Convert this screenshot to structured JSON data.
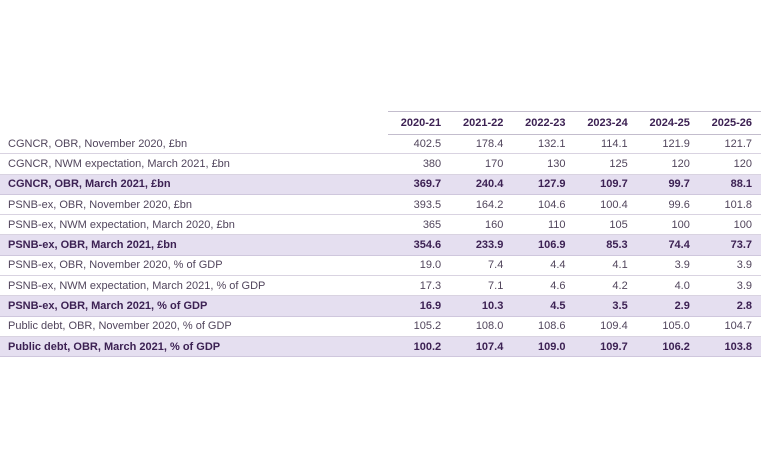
{
  "colors": {
    "background": "#ffffff",
    "highlight_row_bg": "#e5dff0",
    "bold_text": "#3c2153",
    "regular_text": "#51455c",
    "row_border": "#d9d3e1",
    "header_border": "#c3bdcd"
  },
  "chart_data": {
    "type": "table",
    "title": "",
    "columns": [
      "2020-21",
      "2021-22",
      "2022-23",
      "2023-24",
      "2024-25",
      "2025-26"
    ],
    "rows": [
      {
        "label": "CGNCR, OBR, November 2020, £bn",
        "values": [
          "402.5",
          "178.4",
          "132.1",
          "114.1",
          "121.9",
          "121.7"
        ],
        "highlight": false
      },
      {
        "label": "CGNCR, NWM expectation, March 2021, £bn",
        "values": [
          "380",
          "170",
          "130",
          "125",
          "120",
          "120"
        ],
        "highlight": false
      },
      {
        "label": "CGNCR, OBR, March 2021, £bn",
        "values": [
          "369.7",
          "240.4",
          "127.9",
          "109.7",
          "99.7",
          "88.1"
        ],
        "highlight": true
      },
      {
        "label": "PSNB-ex, OBR, November 2020, £bn",
        "values": [
          "393.5",
          "164.2",
          "104.6",
          "100.4",
          "99.6",
          "101.8"
        ],
        "highlight": false
      },
      {
        "label": "PSNB-ex, NWM expectation, March 2020, £bn",
        "values": [
          "365",
          "160",
          "110",
          "105",
          "100",
          "100"
        ],
        "highlight": false
      },
      {
        "label": "PSNB-ex, OBR, March 2021, £bn",
        "values": [
          "354.6",
          "233.9",
          "106.9",
          "85.3",
          "74.4",
          "73.7"
        ],
        "highlight": true
      },
      {
        "label": "PSNB-ex, OBR, November 2020, % of GDP",
        "values": [
          "19.0",
          "7.4",
          "4.4",
          "4.1",
          "3.9",
          "3.9"
        ],
        "highlight": false
      },
      {
        "label": "PSNB-ex, NWM expectation, March 2021, % of GDP",
        "values": [
          "17.3",
          "7.1",
          "4.6",
          "4.2",
          "4.0",
          "3.9"
        ],
        "highlight": false
      },
      {
        "label": "PSNB-ex, OBR, March 2021, % of GDP",
        "values": [
          "16.9",
          "10.3",
          "4.5",
          "3.5",
          "2.9",
          "2.8"
        ],
        "highlight": true
      },
      {
        "label": "Public debt, OBR, November 2020, % of GDP",
        "values": [
          "105.2",
          "108.0",
          "108.6",
          "109.4",
          "105.0",
          "104.7"
        ],
        "highlight": false
      },
      {
        "label": "Public debt, OBR, March 2021, % of GDP",
        "values": [
          "100.2",
          "107.4",
          "109.0",
          "109.7",
          "106.2",
          "103.8"
        ],
        "highlight": true
      }
    ]
  }
}
